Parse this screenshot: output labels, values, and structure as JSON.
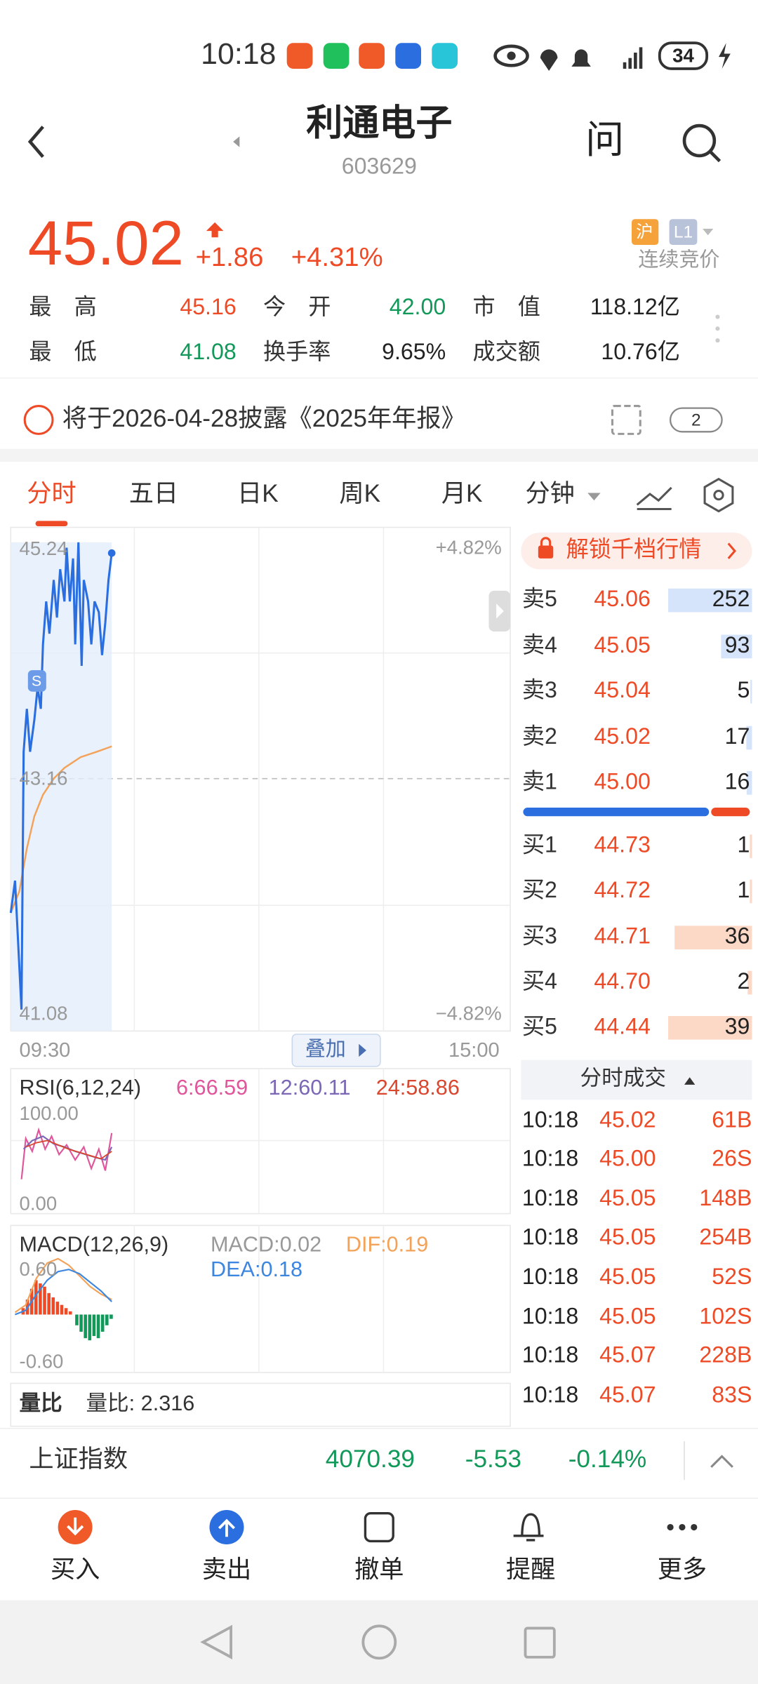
{
  "status": {
    "time": "10:18",
    "battery": "34"
  },
  "header": {
    "title": "利通电子",
    "code": "603629",
    "ask": "问"
  },
  "quote": {
    "price": "45.02",
    "change": "+1.86",
    "change_pct": "+4.31%",
    "market": "沪",
    "level": "L1",
    "state": "连续竞价"
  },
  "stats": [
    {
      "label": "最　高",
      "value": "45.16"
    },
    {
      "label": "今　开",
      "value": "42.00"
    },
    {
      "label": "市　值",
      "value": "118.12亿"
    },
    {
      "label": "最　低",
      "value": "41.08"
    },
    {
      "label": "换手率",
      "value": "9.65%"
    },
    {
      "label": "成交额",
      "value": "10.76亿"
    }
  ],
  "notice": {
    "text": "将于2026-04-28披露《2025年年报》",
    "count": "2"
  },
  "tabs": [
    "分时",
    "五日",
    "日K",
    "周K",
    "月K",
    "分钟"
  ],
  "intraday": {
    "high": "45.24",
    "high_pct": "+4.82%",
    "prev_close": "43.16",
    "low": "41.08",
    "low_pct": "−4.82%",
    "start": "09:30",
    "end": "15:00",
    "overlay": "叠加",
    "marker": "S"
  },
  "rsi": {
    "title": "RSI(6,12,24)",
    "rsi6": "6:66.59",
    "rsi12": "12:60.11",
    "rsi24": "24:58.86",
    "max": "100.00",
    "min": "0.00"
  },
  "macd": {
    "title": "MACD(12,26,9)",
    "macd": "MACD:0.02",
    "dif": "DIF:0.19",
    "dea": "DEA:0.18",
    "max": "0.60",
    "min": "-0.60"
  },
  "volume_ratio": {
    "title": "量比",
    "value": "量比:  2.316"
  },
  "order_book": {
    "unlock": "解锁千档行情",
    "asks": [
      {
        "label": "卖5",
        "price": "45.06",
        "volume": 252
      },
      {
        "label": "卖4",
        "price": "45.05",
        "volume": 93
      },
      {
        "label": "卖3",
        "price": "45.04",
        "volume": 5
      },
      {
        "label": "卖2",
        "price": "45.02",
        "volume": 17
      },
      {
        "label": "卖1",
        "price": "45.00",
        "volume": 16
      }
    ],
    "bids": [
      {
        "label": "买1",
        "price": "44.73",
        "volume": 1
      },
      {
        "label": "买2",
        "price": "44.72",
        "volume": 1
      },
      {
        "label": "买3",
        "price": "44.71",
        "volume": 36
      },
      {
        "label": "买4",
        "price": "44.70",
        "volume": 2
      },
      {
        "label": "买5",
        "price": "44.44",
        "volume": 39
      }
    ]
  },
  "trades": {
    "title": "分时成交",
    "rows": [
      [
        "10:18",
        "45.02",
        "61B"
      ],
      [
        "10:18",
        "45.00",
        "26S"
      ],
      [
        "10:18",
        "45.05",
        "148B"
      ],
      [
        "10:18",
        "45.05",
        "254B"
      ],
      [
        "10:18",
        "45.05",
        "52S"
      ],
      [
        "10:18",
        "45.05",
        "102S"
      ],
      [
        "10:18",
        "45.07",
        "228B"
      ],
      [
        "10:18",
        "45.07",
        "83S"
      ]
    ]
  },
  "index": {
    "name": "上证指数",
    "value": "4070.39",
    "change": "-5.53",
    "change_pct": "-0.14%"
  },
  "nav": [
    "买入",
    "卖出",
    "撤单",
    "提醒",
    "更多"
  ]
}
